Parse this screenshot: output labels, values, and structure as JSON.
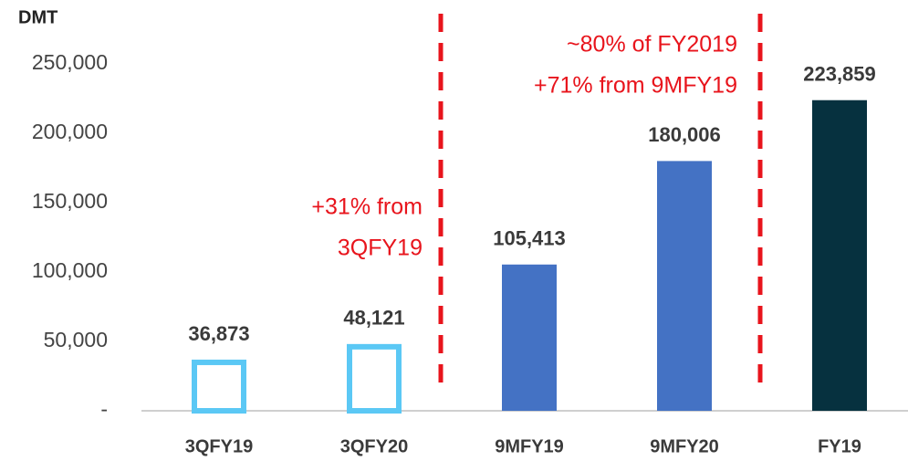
{
  "chart_data": {
    "type": "bar",
    "y_axis_label": "DMT",
    "categories": [
      "3QFY19",
      "3QFY20",
      "9MFY19",
      "9MFY20",
      "FY19"
    ],
    "values": [
      36873,
      48121,
      105413,
      180006,
      223859
    ],
    "value_labels": [
      "36,873",
      "48,121",
      "105,413",
      "180,006",
      "223,859"
    ],
    "colors": [
      "#5bc8f5",
      "#5bc8f5",
      "#4472c4",
      "#4472c4",
      "#06313f"
    ],
    "styles": [
      "outline",
      "outline",
      "solid",
      "solid",
      "solid"
    ],
    "ylim": [
      0,
      250000
    ],
    "yticks": [
      {
        "value": 0,
        "label": "-"
      },
      {
        "value": 50000,
        "label": "50,000"
      },
      {
        "value": 100000,
        "label": "100,000"
      },
      {
        "value": 150000,
        "label": "150,000"
      },
      {
        "value": 200000,
        "label": "200,000"
      },
      {
        "value": 250000,
        "label": "250,000"
      }
    ],
    "grid": false,
    "annotations": [
      {
        "lines": [
          "+31% from",
          "3QFY19"
        ]
      },
      {
        "lines": [
          "~80% of FY2019",
          "+71% from 9MFY19"
        ]
      }
    ]
  }
}
